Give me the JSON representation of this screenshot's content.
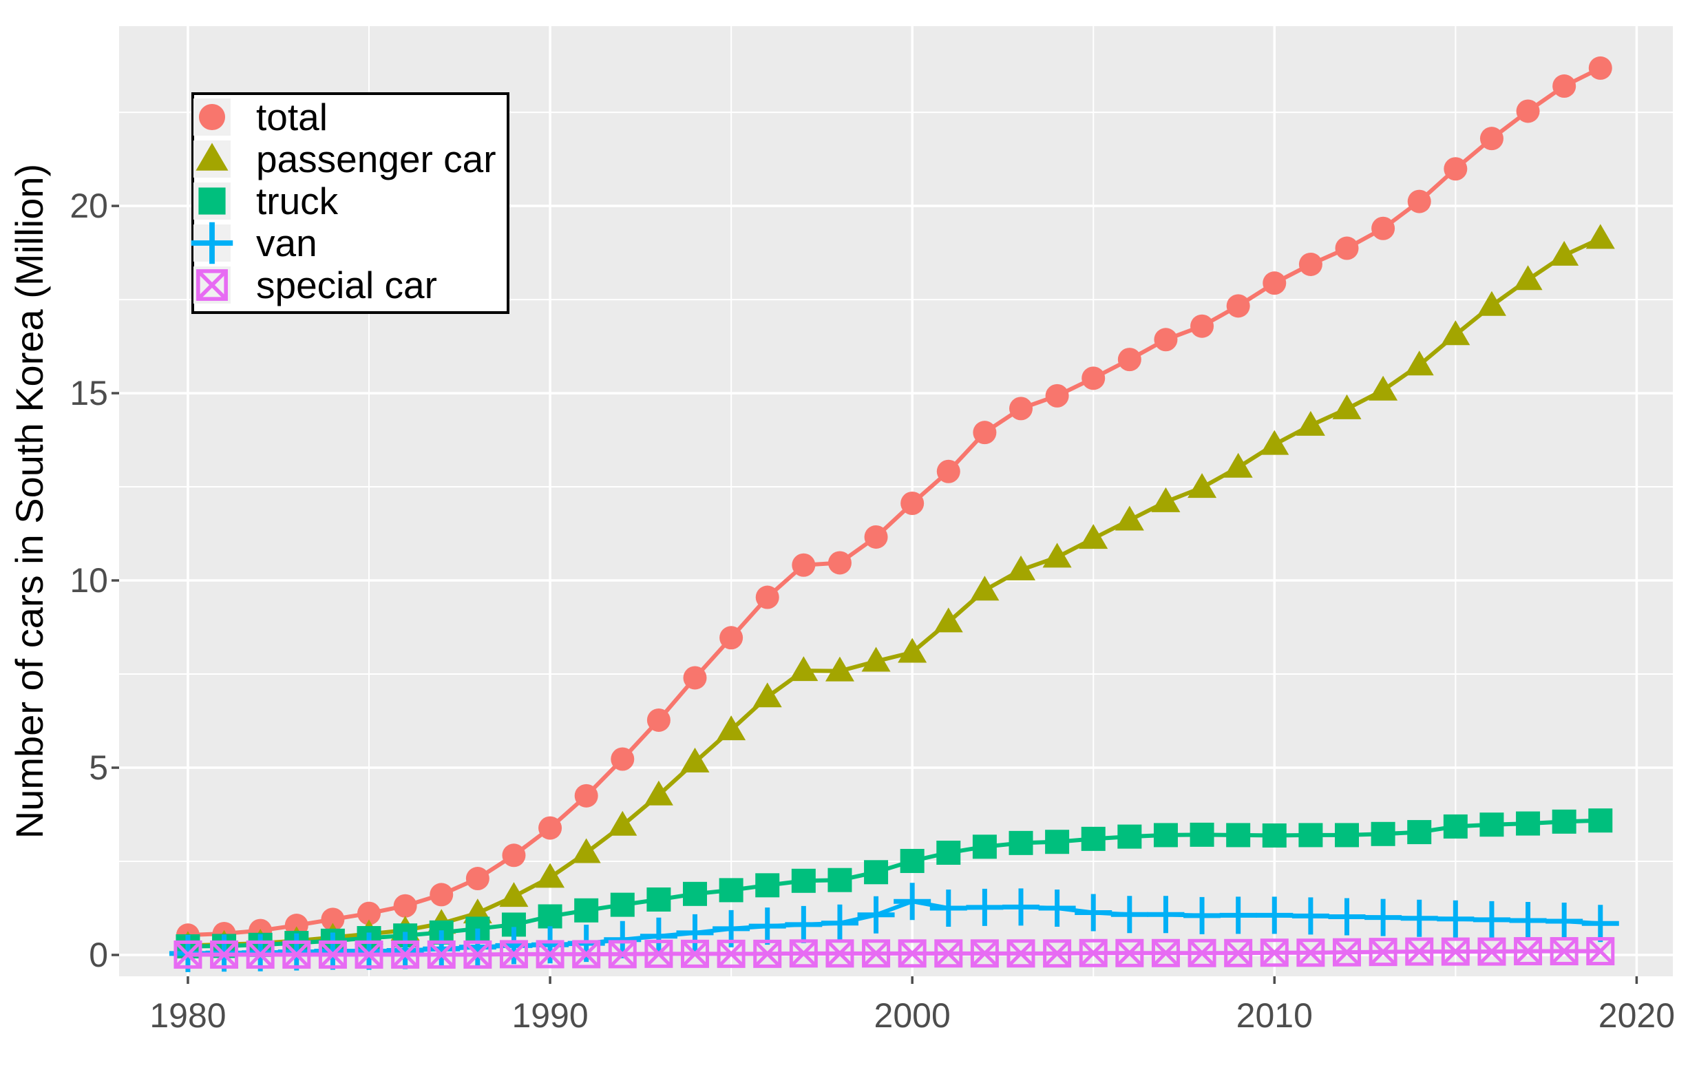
{
  "page": {
    "background": "#FFFFFF"
  },
  "chart_data": {
    "type": "line",
    "title": "",
    "xlabel": "",
    "ylabel": "Number of cars in South Korea (Million)",
    "x": [
      1980,
      1981,
      1982,
      1983,
      1984,
      1985,
      1986,
      1987,
      1988,
      1989,
      1990,
      1991,
      1992,
      1993,
      1994,
      1995,
      1996,
      1997,
      1998,
      1999,
      2000,
      2001,
      2002,
      2003,
      2004,
      2005,
      2006,
      2007,
      2008,
      2009,
      2010,
      2011,
      2012,
      2013,
      2014,
      2015,
      2016,
      2017,
      2018,
      2019
    ],
    "series": [
      {
        "name": "total",
        "color": "#F8766D",
        "marker": "circle",
        "values": [
          0.53,
          0.57,
          0.65,
          0.79,
          0.95,
          1.11,
          1.31,
          1.61,
          2.04,
          2.66,
          3.39,
          4.25,
          5.23,
          6.27,
          7.4,
          8.47,
          9.55,
          10.41,
          10.47,
          11.16,
          12.06,
          12.91,
          13.95,
          14.59,
          14.93,
          15.4,
          15.9,
          16.43,
          16.79,
          17.33,
          17.94,
          18.44,
          18.87,
          19.4,
          20.12,
          20.99,
          21.8,
          22.53,
          23.2,
          23.68
        ]
      },
      {
        "name": "passenger car",
        "color": "#A3A500",
        "marker": "triangle",
        "values": [
          0.25,
          0.28,
          0.31,
          0.38,
          0.47,
          0.56,
          0.66,
          0.84,
          1.12,
          1.56,
          2.07,
          2.73,
          3.46,
          4.27,
          5.15,
          6.01,
          6.89,
          7.59,
          7.58,
          7.84,
          8.08,
          8.89,
          9.74,
          10.28,
          10.62,
          11.12,
          11.61,
          12.1,
          12.48,
          13.02,
          13.63,
          14.14,
          14.58,
          15.08,
          15.75,
          16.56,
          17.34,
          18.03,
          18.68,
          19.13
        ]
      },
      {
        "name": "truck",
        "color": "#00BF7D",
        "marker": "square",
        "values": [
          0.23,
          0.24,
          0.27,
          0.32,
          0.38,
          0.45,
          0.52,
          0.6,
          0.7,
          0.81,
          1.03,
          1.19,
          1.34,
          1.48,
          1.63,
          1.73,
          1.86,
          1.98,
          2.0,
          2.21,
          2.51,
          2.73,
          2.89,
          2.99,
          3.02,
          3.1,
          3.16,
          3.2,
          3.21,
          3.2,
          3.19,
          3.2,
          3.2,
          3.23,
          3.28,
          3.43,
          3.48,
          3.51,
          3.56,
          3.59
        ]
      },
      {
        "name": "van",
        "color": "#00B0F6",
        "marker": "plus",
        "values": [
          0.04,
          0.05,
          0.06,
          0.08,
          0.1,
          0.1,
          0.12,
          0.16,
          0.21,
          0.25,
          0.27,
          0.31,
          0.41,
          0.5,
          0.59,
          0.7,
          0.77,
          0.81,
          0.85,
          1.07,
          1.43,
          1.25,
          1.27,
          1.28,
          1.25,
          1.13,
          1.08,
          1.08,
          1.05,
          1.06,
          1.06,
          1.04,
          1.02,
          1.0,
          0.98,
          0.96,
          0.94,
          0.92,
          0.9,
          0.84
        ]
      },
      {
        "name": "special car",
        "color": "#E76BF3",
        "marker": "crossed-square",
        "values": [
          0.01,
          0.01,
          0.01,
          0.01,
          0.01,
          0.01,
          0.01,
          0.01,
          0.01,
          0.02,
          0.02,
          0.02,
          0.02,
          0.03,
          0.03,
          0.03,
          0.03,
          0.04,
          0.04,
          0.04,
          0.04,
          0.04,
          0.04,
          0.04,
          0.04,
          0.05,
          0.05,
          0.05,
          0.05,
          0.05,
          0.06,
          0.06,
          0.07,
          0.08,
          0.09,
          0.09,
          0.09,
          0.1,
          0.1,
          0.1
        ]
      }
    ],
    "axes": {
      "x_domain": [
        1978.1,
        2021.0
      ],
      "y_domain": [
        -0.57,
        24.8
      ],
      "x_ticks": [
        1980,
        1990,
        2000,
        2010,
        2020
      ],
      "x_minor": [
        1985,
        1995,
        2005,
        2015
      ],
      "y_ticks": [
        0,
        5,
        10,
        15,
        20
      ],
      "y_minor": [
        2.5,
        7.5,
        12.5,
        17.5,
        22.5
      ],
      "grid": "on"
    },
    "legend": {
      "position": "top-left",
      "entries": [
        "total",
        "passenger car",
        "truck",
        "van",
        "special car"
      ]
    },
    "style": {
      "panel_bg": "#EBEBEB",
      "grid_color": "#FFFFFF",
      "tick_label_color": "#4D4D4D",
      "tick_mark_color": "#4D4D4D",
      "axis_title_color": "#000000",
      "legend_bg": "#FFFFFF",
      "legend_border": "#000000",
      "legend_key_bg": "#F0F0F0",
      "legend_text_color": "#000000"
    }
  }
}
